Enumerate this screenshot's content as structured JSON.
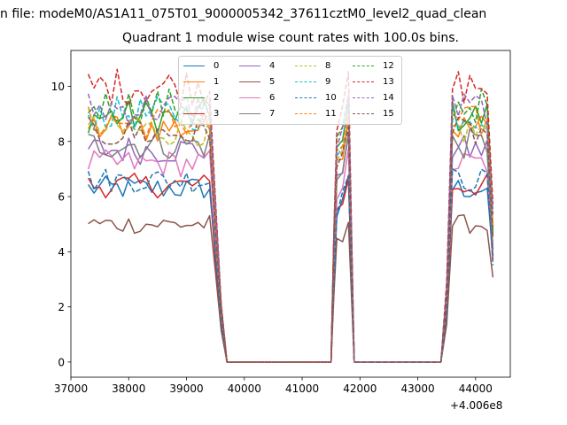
{
  "suptitle": "n file: modeM0/AS1A11_075T01_9000005342_37611cztM0_level2_quad_clean",
  "colors": [
    "#1f77b4",
    "#ff7f0e",
    "#2ca02c",
    "#d62728",
    "#9467bd",
    "#8c564b",
    "#e377c2",
    "#7f7f7f",
    "#bcbd22",
    "#17becf"
  ],
  "chart_data": {
    "type": "line",
    "title": "Quadrant 1 module wise count rates with 100.0s bins.",
    "xlabel": "",
    "ylabel": "",
    "x_offset_label": "+4.006e8",
    "xlim": [
      37000,
      44600
    ],
    "ylim": [
      -0.55,
      11.3
    ],
    "xticks": [
      37000,
      38000,
      39000,
      40000,
      41000,
      42000,
      43000,
      44000
    ],
    "yticks": [
      0,
      2,
      4,
      6,
      8,
      10
    ],
    "grid": false,
    "legend": {
      "position": "top-center",
      "columns": 4
    },
    "segments": [
      [
        37300,
        39700
      ],
      [
        41500,
        41900
      ],
      [
        43400,
        44300
      ]
    ],
    "series": [
      {
        "name": "0",
        "style": "solid",
        "level": 6.3
      },
      {
        "name": "1",
        "style": "solid",
        "level": 8.5
      },
      {
        "name": "2",
        "style": "solid",
        "level": 8.9
      },
      {
        "name": "3",
        "style": "solid",
        "level": 6.4
      },
      {
        "name": "4",
        "style": "solid",
        "level": 7.7
      },
      {
        "name": "5",
        "style": "solid",
        "level": 5.0
      },
      {
        "name": "6",
        "style": "solid",
        "level": 7.2
      },
      {
        "name": "7",
        "style": "solid",
        "level": 7.9
      },
      {
        "name": "8",
        "style": "dashed",
        "level": 8.4
      },
      {
        "name": "9",
        "style": "dashed",
        "level": 9.0
      },
      {
        "name": "10",
        "style": "dashed",
        "level": 6.6
      },
      {
        "name": "11",
        "style": "dashed",
        "level": 8.7
      },
      {
        "name": "12",
        "style": "dashed",
        "level": 9.3
      },
      {
        "name": "13",
        "style": "dashed",
        "level": 10.0
      },
      {
        "name": "14",
        "style": "dashed",
        "level": 9.2
      },
      {
        "name": "15",
        "style": "dashed",
        "level": 8.3
      }
    ]
  }
}
